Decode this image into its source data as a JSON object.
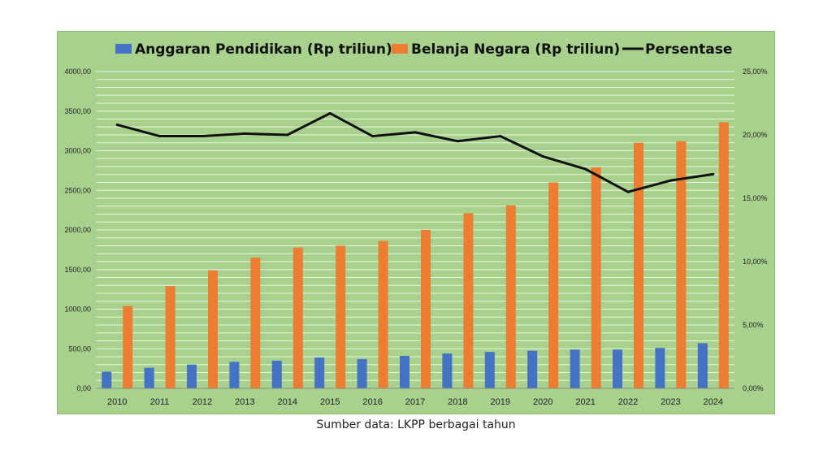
{
  "chart_data": {
    "type": "bar",
    "categories": [
      "2010",
      "2011",
      "2012",
      "2013",
      "2014",
      "2015",
      "2016",
      "2017",
      "2018",
      "2019",
      "2020",
      "2021",
      "2022",
      "2023",
      "2024"
    ],
    "series": [
      {
        "name": "Anggaran Pendidikan (Rp triliun)",
        "kind": "bar",
        "axis": "left",
        "color": "#4472c4",
        "values": [
          210,
          260,
          300,
          335,
          350,
          390,
          370,
          410,
          440,
          460,
          475,
          490,
          490,
          510,
          570
        ]
      },
      {
        "name": "Belanja Negara (Rp triliun)",
        "kind": "bar",
        "axis": "left",
        "color": "#ed7d31",
        "values": [
          1040,
          1290,
          1490,
          1650,
          1777,
          1800,
          1860,
          2000,
          2210,
          2310,
          2600,
          2790,
          3100,
          3120,
          3360
        ]
      },
      {
        "name": "Persentase",
        "kind": "line",
        "axis": "right",
        "color": "#111111",
        "values": [
          20.8,
          19.9,
          19.9,
          20.1,
          20.0,
          21.7,
          19.9,
          20.2,
          19.5,
          19.9,
          18.3,
          17.3,
          15.5,
          16.4,
          16.9
        ]
      }
    ],
    "yleft": {
      "min": 0,
      "max": 4000,
      "step": 500,
      "ticks": [
        "0,00",
        "500,00",
        "1000,00",
        "1500,00",
        "2000,00",
        "2500,00",
        "3000,00",
        "3500,00",
        "4000,00"
      ]
    },
    "yright": {
      "min": 0,
      "max": 25,
      "step": 5,
      "ticks": [
        "0,00%",
        "5,00%",
        "10,00%",
        "15,00%",
        "20,00%",
        "25,00%"
      ]
    },
    "grid": true,
    "legend": "top-center",
    "background": "#a9d18e",
    "source": "Sumber data: LKPP berbagai tahun"
  }
}
